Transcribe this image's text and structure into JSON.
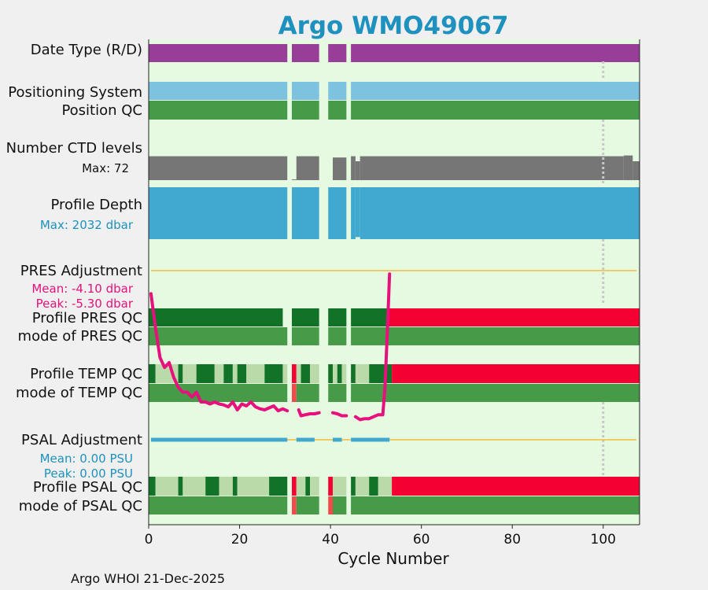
{
  "chart_data": {
    "type": "timeline",
    "title_prefix": "Argo WMO",
    "wmo": "49067",
    "xlabel": "Cycle Number",
    "xlim": [
      0,
      108
    ],
    "xticks": [
      0,
      20,
      40,
      60,
      80,
      100
    ],
    "footer": "Argo WHOI 21-Dec-2025",
    "reference_cycle": 100,
    "labels": {
      "date_type": "Date Type (R/D)",
      "positioning_system": "Positioning System",
      "position_qc": "Position QC",
      "ctd_levels": "Number CTD levels",
      "ctd_max": "Max: 72",
      "profile_depth": "Profile Depth",
      "depth_max": "Max: 2032 dbar",
      "pres_adjustment": "PRES Adjustment",
      "pres_mean": "Mean: -4.10 dbar",
      "pres_peak": "Peak: -5.30 dbar",
      "profile_pres_qc": "Profile PRES QC",
      "mode_pres_qc": "mode of PRES QC",
      "profile_temp_qc": "Profile TEMP QC",
      "mode_temp_qc": "mode of TEMP QC",
      "psal_adjustment": "PSAL Adjustment",
      "psal_mean": "Mean: 0.00 PSU",
      "psal_peak": "Peak: 0.00 PSU",
      "profile_psal_qc": "Profile PSAL QC",
      "mode_psal_qc": "mode of PSAL QC"
    },
    "colors": {
      "background": "#e6fae1",
      "date_type": "#983d98",
      "positioning": "#7dc3e0",
      "green": "#479a47",
      "dark_green": "#127328",
      "light_green": "#bbdaaa",
      "red": "#f50032",
      "light_red": "#f24a4a",
      "gray": "#767676",
      "depth": "#41a9cf",
      "adjust_line": "#f2b93c",
      "pres_curve": "#e6117c",
      "psal_bar": "#41a9cf",
      "title": "#1e91be",
      "depth_label": "#1e91be",
      "pres_label": "#e6117c",
      "psal_label": "#1e91be",
      "refline": "#c8c8c8"
    },
    "profiles": [
      [
        0,
        30.5
      ],
      [
        31.5,
        37.5
      ],
      [
        39.5,
        43.5
      ],
      [
        44.5,
        108
      ]
    ],
    "ctd_levels": {
      "max": 72,
      "bars": [
        {
          "x0": 0,
          "x1": 30.5,
          "v": 0.95
        },
        {
          "x0": 31.5,
          "x1": 32.5,
          "v": 0.03
        },
        {
          "x0": 32.5,
          "x1": 37.5,
          "v": 0.95
        },
        {
          "x0": 40.5,
          "x1": 43.5,
          "v": 0.9
        },
        {
          "x0": 44.5,
          "x1": 45.5,
          "v": 0.95
        },
        {
          "x0": 45.5,
          "x1": 46.5,
          "v": 0.75
        },
        {
          "x0": 46.5,
          "x1": 104.5,
          "v": 0.95
        },
        {
          "x0": 104.5,
          "x1": 106.5,
          "v": 0.98
        },
        {
          "x0": 106.5,
          "x1": 108,
          "v": 0.75
        }
      ]
    },
    "profile_depth": {
      "max_dbar": 2032,
      "bars": [
        {
          "x0": 0,
          "x1": 30.5,
          "v": 1.0
        },
        {
          "x0": 31.5,
          "x1": 37.5,
          "v": 1.0
        },
        {
          "x0": 39.5,
          "x1": 43.5,
          "v": 1.0
        },
        {
          "x0": 44.5,
          "x1": 45.5,
          "v": 1.0
        },
        {
          "x0": 45.5,
          "x1": 46.5,
          "v": 0.96
        },
        {
          "x0": 46.5,
          "x1": 108,
          "v": 1.0
        }
      ]
    },
    "pres_adjustment_curve": [
      [
        0.5,
        -4.1
      ],
      [
        1.5,
        -4.45
      ],
      [
        2.5,
        -4.75
      ],
      [
        3.5,
        -4.85
      ],
      [
        4.5,
        -4.8
      ],
      [
        5.5,
        -4.95
      ],
      [
        6.5,
        -5.05
      ],
      [
        7.5,
        -5.1
      ],
      [
        8.5,
        -5.1
      ],
      [
        9.5,
        -5.15
      ],
      [
        10.5,
        -5.1
      ],
      [
        11.5,
        -5.2
      ],
      [
        12.5,
        -5.2
      ],
      [
        13.5,
        -5.22
      ],
      [
        14.5,
        -5.2
      ],
      [
        15.5,
        -5.22
      ],
      [
        16.5,
        -5.23
      ],
      [
        17.5,
        -5.25
      ],
      [
        18.5,
        -5.2
      ],
      [
        19.5,
        -5.28
      ],
      [
        20.5,
        -5.22
      ],
      [
        21.5,
        -5.24
      ],
      [
        22.5,
        -5.2
      ],
      [
        23.5,
        -5.25
      ],
      [
        24.5,
        -5.27
      ],
      [
        25.5,
        -5.28
      ],
      [
        26.5,
        -5.26
      ],
      [
        27.5,
        -5.24
      ],
      [
        28.5,
        -5.29
      ],
      [
        29.5,
        -5.27
      ],
      [
        30.5,
        -5.29
      ],
      null,
      [
        33.0,
        -5.28
      ],
      [
        33.5,
        -5.34
      ],
      [
        34.5,
        -5.33
      ],
      [
        35.5,
        -5.32
      ],
      [
        36.5,
        -5.32
      ],
      [
        37.5,
        -5.31
      ],
      null,
      [
        40.5,
        -5.31
      ],
      [
        41.5,
        -5.32
      ],
      [
        42.5,
        -5.34
      ],
      [
        43.5,
        -5.34
      ],
      null,
      [
        45.5,
        -5.35
      ],
      [
        46.5,
        -5.38
      ],
      [
        47.5,
        -5.37
      ],
      [
        48.5,
        -5.37
      ],
      [
        49.5,
        -5.35
      ],
      [
        50.5,
        -5.33
      ],
      [
        51.5,
        -5.33
      ],
      [
        52.0,
        -5.05
      ],
      [
        52.5,
        -4.5
      ],
      [
        53.0,
        -3.9
      ]
    ],
    "pres_adjustment_range": [
      -5.4,
      -3.85
    ],
    "psal_adjustment_segments": [
      [
        0.5,
        30.5
      ],
      [
        32.5,
        36.5
      ],
      [
        40.5,
        42.5
      ],
      [
        44.5,
        53.0
      ]
    ],
    "qc_rows": {
      "date_type": [
        [
          0,
          30.5,
          "date_type"
        ],
        [
          31.5,
          37.5,
          "date_type"
        ],
        [
          39.5,
          43.5,
          "date_type"
        ],
        [
          44.5,
          108,
          "date_type"
        ]
      ],
      "positioning": [
        [
          0,
          30.5,
          "positioning"
        ],
        [
          31.5,
          37.5,
          "positioning"
        ],
        [
          39.5,
          43.5,
          "positioning"
        ],
        [
          44.5,
          108,
          "positioning"
        ]
      ],
      "position_qc": [
        [
          0,
          30.5,
          "green"
        ],
        [
          31.5,
          37.5,
          "green"
        ],
        [
          39.5,
          43.5,
          "green"
        ],
        [
          44.5,
          108,
          "green"
        ]
      ],
      "profile_pres_qc": [
        [
          0,
          29.5,
          "dark_green"
        ],
        [
          31.5,
          37.5,
          "dark_green"
        ],
        [
          39.5,
          43.5,
          "dark_green"
        ],
        [
          44.5,
          52.5,
          "dark_green"
        ],
        [
          52.5,
          108,
          "red"
        ]
      ],
      "mode_pres_qc": [
        [
          0,
          30.5,
          "green"
        ],
        [
          31.5,
          37.5,
          "green"
        ],
        [
          39.5,
          43.5,
          "green"
        ],
        [
          44.5,
          108,
          "green"
        ]
      ],
      "profile_temp_qc": [
        [
          0,
          1.5,
          "dark_green"
        ],
        [
          1.5,
          6.5,
          "light_green"
        ],
        [
          6.5,
          7.5,
          "dark_green"
        ],
        [
          7.5,
          10.5,
          "light_green"
        ],
        [
          10.5,
          14.5,
          "dark_green"
        ],
        [
          14.5,
          16.5,
          "light_green"
        ],
        [
          16.5,
          18.5,
          "dark_green"
        ],
        [
          18.5,
          19.5,
          "light_green"
        ],
        [
          19.5,
          21.5,
          "dark_green"
        ],
        [
          21.5,
          25.5,
          "light_green"
        ],
        [
          25.5,
          29.5,
          "dark_green"
        ],
        [
          29.5,
          30.5,
          "light_green"
        ],
        [
          31.5,
          32.5,
          "red"
        ],
        [
          32.5,
          33.5,
          "light_green"
        ],
        [
          33.5,
          35.5,
          "dark_green"
        ],
        [
          35.5,
          37.5,
          "light_green"
        ],
        [
          39.5,
          40.5,
          "dark_green"
        ],
        [
          40.5,
          41.5,
          "light_green"
        ],
        [
          41.5,
          42.5,
          "dark_green"
        ],
        [
          42.5,
          43.5,
          "light_green"
        ],
        [
          44.5,
          45.5,
          "dark_green"
        ],
        [
          45.5,
          48.5,
          "light_green"
        ],
        [
          48.5,
          53.5,
          "dark_green"
        ],
        [
          53.5,
          108,
          "red"
        ]
      ],
      "mode_temp_qc": [
        [
          0,
          30.5,
          "green"
        ],
        [
          31.5,
          32.5,
          "light_red"
        ],
        [
          32.5,
          37.5,
          "green"
        ],
        [
          39.5,
          43.5,
          "green"
        ],
        [
          44.5,
          108,
          "green"
        ]
      ],
      "profile_psal_qc": [
        [
          0,
          1.5,
          "dark_green"
        ],
        [
          1.5,
          6.5,
          "light_green"
        ],
        [
          6.5,
          7.5,
          "dark_green"
        ],
        [
          7.5,
          12.5,
          "light_green"
        ],
        [
          12.5,
          15.5,
          "dark_green"
        ],
        [
          15.5,
          18.5,
          "light_green"
        ],
        [
          18.5,
          19.5,
          "dark_green"
        ],
        [
          19.5,
          26.5,
          "light_green"
        ],
        [
          26.5,
          30.5,
          "dark_green"
        ],
        [
          31.5,
          32.5,
          "red"
        ],
        [
          32.5,
          34.5,
          "light_green"
        ],
        [
          34.5,
          35.5,
          "dark_green"
        ],
        [
          35.5,
          37.5,
          "light_green"
        ],
        [
          39.5,
          40.5,
          "red"
        ],
        [
          40.5,
          43.5,
          "light_green"
        ],
        [
          44.5,
          45.5,
          "dark_green"
        ],
        [
          45.5,
          48.5,
          "light_green"
        ],
        [
          48.5,
          50.5,
          "dark_green"
        ],
        [
          50.5,
          53.5,
          "light_green"
        ],
        [
          53.5,
          108,
          "red"
        ]
      ],
      "mode_psal_qc": [
        [
          0,
          30.5,
          "green"
        ],
        [
          31.5,
          32.5,
          "light_red"
        ],
        [
          32.5,
          37.5,
          "green"
        ],
        [
          39.5,
          40.5,
          "light_red"
        ],
        [
          40.5,
          43.5,
          "green"
        ],
        [
          44.5,
          108,
          "green"
        ]
      ]
    }
  }
}
